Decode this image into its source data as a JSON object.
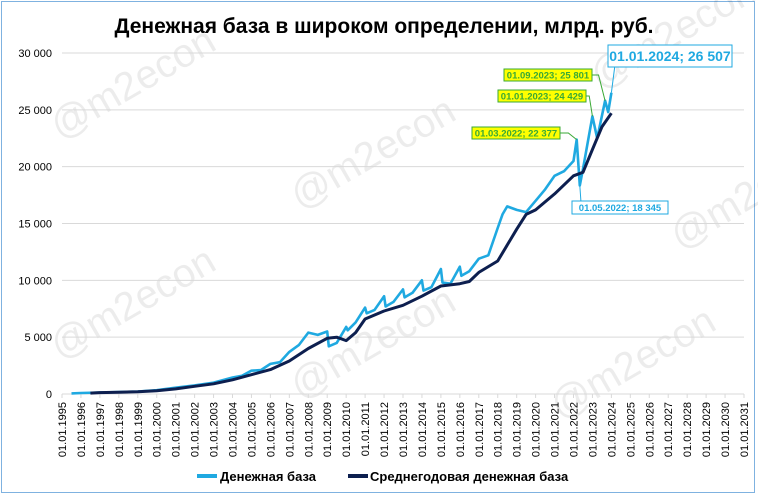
{
  "chart_data": {
    "type": "line",
    "title": "Денежная база в широком определении, млрд. руб.",
    "xlabel": "",
    "ylabel": "",
    "xlim": [
      "1995-01-01",
      "2031-01-01"
    ],
    "ylim": [
      0,
      30000
    ],
    "y_ticks": [
      0,
      5000,
      10000,
      15000,
      20000,
      25000,
      30000
    ],
    "y_tick_labels": [
      "0",
      "5 000",
      "10 000",
      "15 000",
      "20 000",
      "25 000",
      "30 000"
    ],
    "x_tick_labels": [
      "01.01.1995",
      "01.01.1996",
      "01.01.1997",
      "01.01.1998",
      "01.01.1999",
      "01.01.2000",
      "01.01.2001",
      "01.01.2002",
      "01.01.2003",
      "01.01.2004",
      "01.01.2005",
      "01.01.2006",
      "01.01.2007",
      "01.01.2008",
      "01.01.2009",
      "01.01.2010",
      "01.01.2011",
      "01.01.2012",
      "01.01.2013",
      "01.01.2014",
      "01.01.2015",
      "01.01.2016",
      "01.01.2017",
      "01.01.2018",
      "01.01.2019",
      "01.01.2020",
      "01.01.2021",
      "01.01.2022",
      "01.01.2023",
      "01.01.2024",
      "01.01.2025",
      "01.01.2026",
      "01.01.2027",
      "01.01.2028",
      "01.01.2029",
      "01.01.2030",
      "01.01.2031"
    ],
    "grid": "horizontal",
    "legend_position": "bottom",
    "series": [
      {
        "name": "Денежная база",
        "color": "#1fa9e1",
        "points": [
          [
            "1995-07-01",
            50
          ],
          [
            "1996-01-01",
            90
          ],
          [
            "1997-01-01",
            130
          ],
          [
            "1998-01-01",
            165
          ],
          [
            "1999-01-01",
            220
          ],
          [
            "2000-01-01",
            330
          ],
          [
            "2001-01-01",
            550
          ],
          [
            "2002-01-01",
            760
          ],
          [
            "2003-01-01",
            1000
          ],
          [
            "2004-01-01",
            1450
          ],
          [
            "2004-07-01",
            1600
          ],
          [
            "2005-01-01",
            2050
          ],
          [
            "2005-07-01",
            2100
          ],
          [
            "2006-01-01",
            2650
          ],
          [
            "2006-07-01",
            2800
          ],
          [
            "2007-01-01",
            3700
          ],
          [
            "2007-07-01",
            4300
          ],
          [
            "2008-01-01",
            5400
          ],
          [
            "2008-07-01",
            5200
          ],
          [
            "2009-01-01",
            5500
          ],
          [
            "2009-02-01",
            4200
          ],
          [
            "2009-07-01",
            4500
          ],
          [
            "2010-01-01",
            5900
          ],
          [
            "2010-02-01",
            5600
          ],
          [
            "2010-07-01",
            6300
          ],
          [
            "2011-01-01",
            7600
          ],
          [
            "2011-02-01",
            7100
          ],
          [
            "2011-07-01",
            7400
          ],
          [
            "2012-01-01",
            8600
          ],
          [
            "2012-02-01",
            7700
          ],
          [
            "2012-07-01",
            8100
          ],
          [
            "2013-01-01",
            9200
          ],
          [
            "2013-02-01",
            8500
          ],
          [
            "2013-07-01",
            8900
          ],
          [
            "2014-01-01",
            10000
          ],
          [
            "2014-02-01",
            9100
          ],
          [
            "2014-07-01",
            9400
          ],
          [
            "2015-01-01",
            11000
          ],
          [
            "2015-02-01",
            9800
          ],
          [
            "2015-07-01",
            9700
          ],
          [
            "2016-01-01",
            11200
          ],
          [
            "2016-02-01",
            10400
          ],
          [
            "2016-07-01",
            10800
          ],
          [
            "2017-01-01",
            11900
          ],
          [
            "2017-07-01",
            12200
          ],
          [
            "2018-01-01",
            14600
          ],
          [
            "2018-04-01",
            15800
          ],
          [
            "2018-07-01",
            16500
          ],
          [
            "2019-01-01",
            16200
          ],
          [
            "2019-07-01",
            16000
          ],
          [
            "2020-01-01",
            17000
          ],
          [
            "2020-07-01",
            18000
          ],
          [
            "2021-01-01",
            19200
          ],
          [
            "2021-07-01",
            19600
          ],
          [
            "2022-01-01",
            20500
          ],
          [
            "2022-03-01",
            22377
          ],
          [
            "2022-05-01",
            18345
          ],
          [
            "2022-07-01",
            19800
          ],
          [
            "2023-01-01",
            24429
          ],
          [
            "2023-04-01",
            22500
          ],
          [
            "2023-09-01",
            25801
          ],
          [
            "2023-11-01",
            24800
          ],
          [
            "2024-01-01",
            26507
          ]
        ]
      },
      {
        "name": "Среднегодовая денежная база",
        "color": "#0d1f4f",
        "points": [
          [
            "1996-07-01",
            80
          ],
          [
            "1997-01-01",
            120
          ],
          [
            "1998-01-01",
            160
          ],
          [
            "1999-01-01",
            200
          ],
          [
            "2000-01-01",
            290
          ],
          [
            "2001-01-01",
            450
          ],
          [
            "2002-01-01",
            680
          ],
          [
            "2003-01-01",
            900
          ],
          [
            "2004-01-01",
            1250
          ],
          [
            "2005-01-01",
            1700
          ],
          [
            "2006-01-01",
            2150
          ],
          [
            "2007-01-01",
            2900
          ],
          [
            "2008-01-01",
            4000
          ],
          [
            "2009-01-01",
            4900
          ],
          [
            "2009-07-01",
            5000
          ],
          [
            "2010-01-01",
            4700
          ],
          [
            "2010-07-01",
            5400
          ],
          [
            "2011-01-01",
            6600
          ],
          [
            "2012-01-01",
            7300
          ],
          [
            "2013-01-01",
            7800
          ],
          [
            "2014-01-01",
            8600
          ],
          [
            "2015-01-01",
            9500
          ],
          [
            "2016-01-01",
            9700
          ],
          [
            "2016-07-01",
            9900
          ],
          [
            "2017-01-01",
            10700
          ],
          [
            "2018-01-01",
            11700
          ],
          [
            "2019-01-01",
            14500
          ],
          [
            "2019-07-01",
            15800
          ],
          [
            "2020-01-01",
            16200
          ],
          [
            "2021-01-01",
            17600
          ],
          [
            "2022-01-01",
            19200
          ],
          [
            "2022-07-01",
            19500
          ],
          [
            "2023-01-01",
            21500
          ],
          [
            "2023-07-01",
            23500
          ],
          [
            "2024-01-01",
            24700
          ]
        ]
      }
    ],
    "annotations": [
      {
        "date": "2022-03-01",
        "value": 22377,
        "label": "01.03.2022;  22 377",
        "style": "yellow"
      },
      {
        "date": "2023-01-01",
        "value": 24429,
        "label": "01.01.2023;  24 429",
        "style": "yellow"
      },
      {
        "date": "2023-09-01",
        "value": 25801,
        "label": "01.09.2023;  25 801",
        "style": "yellow"
      },
      {
        "date": "2024-01-01",
        "value": 26507,
        "label": "01.01.2024;  26 507",
        "style": "white-large"
      },
      {
        "date": "2022-05-01",
        "value": 18345,
        "label": "01.05.2022;  18 345",
        "style": "white"
      }
    ],
    "watermark": "@m2econ"
  },
  "colors": {
    "yellow_box": "#ffff00",
    "annotation_green": "#3aa935",
    "annotation_blue": "#1fa9e1",
    "grid": "#d9d9d9"
  }
}
